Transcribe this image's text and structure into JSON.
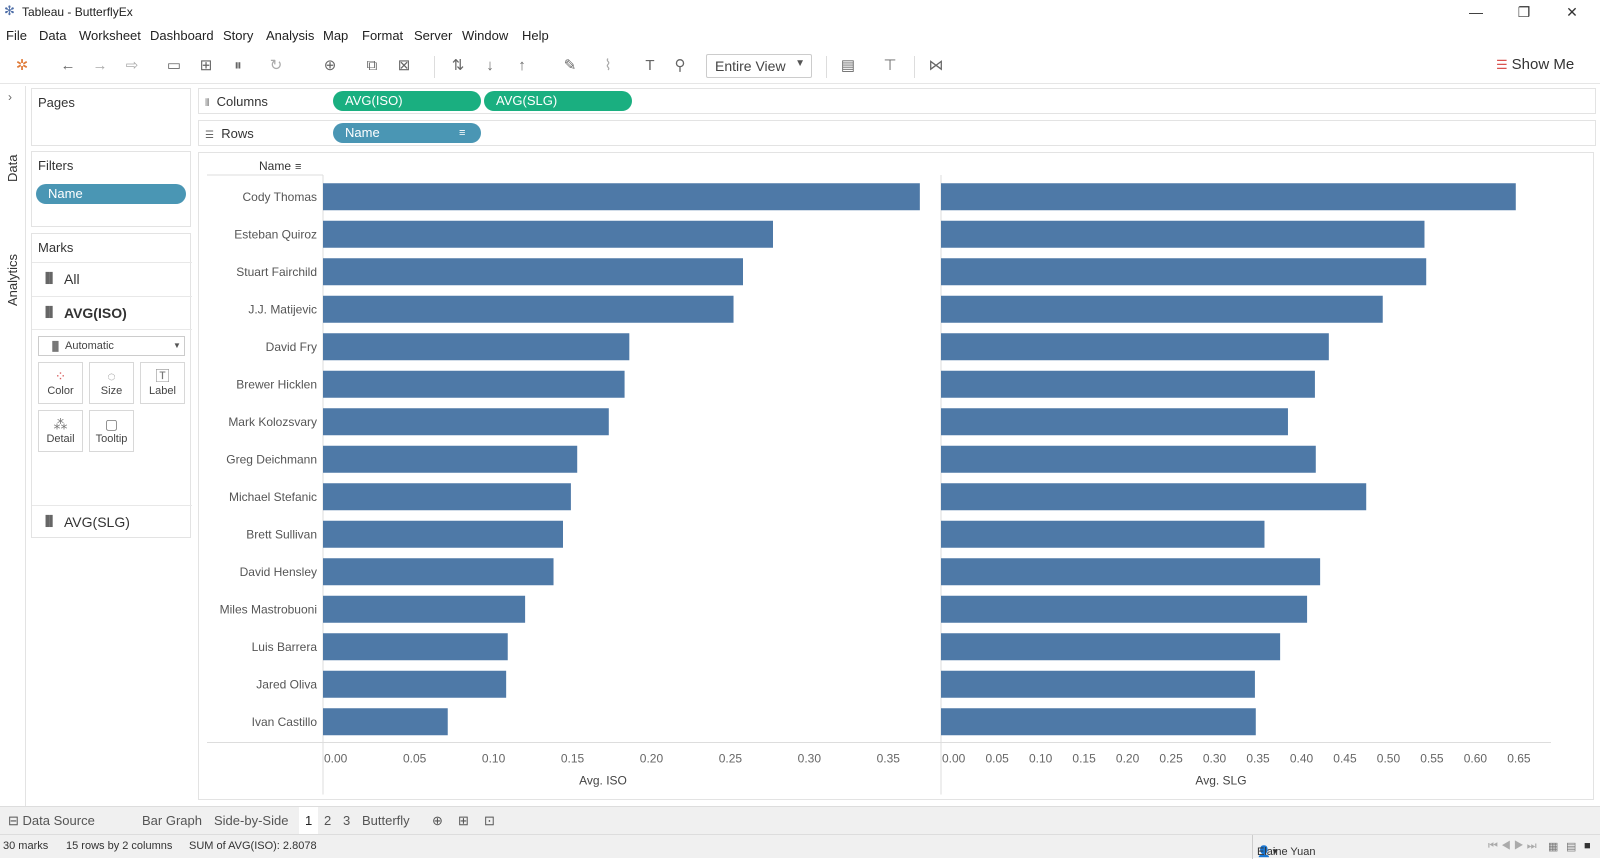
{
  "window": {
    "title": "Tableau - ButterflyEx",
    "controls": [
      "—",
      "❐",
      "✕"
    ]
  },
  "menu": [
    "File",
    "Data",
    "Worksheet",
    "Dashboard",
    "Story",
    "Analysis",
    "Map",
    "Format",
    "Server",
    "Window",
    "Help"
  ],
  "toolbar": {
    "view_select": "Entire View",
    "show_me": "Show Me"
  },
  "side_tabs": {
    "data": "Data",
    "analytics": "Analytics"
  },
  "cards": {
    "pages": "Pages",
    "filters": "Filters",
    "filter_pill": "Name",
    "marks": "Marks",
    "marks_all": "All",
    "marks_iso": "AVG(ISO)",
    "marks_type": "Automatic",
    "marks_slg": "AVG(SLG)",
    "buttons": {
      "color": "Color",
      "size": "Size",
      "label": "Label",
      "detail": "Detail",
      "tooltip": "Tooltip"
    }
  },
  "shelves": {
    "columns_label": "Columns",
    "rows_label": "Rows",
    "col_pill_1": "AVG(ISO)",
    "col_pill_2": "AVG(SLG)",
    "row_pill": "Name"
  },
  "chart_data": {
    "type": "bar",
    "orientation": "horizontal",
    "row_header": "Name",
    "categories": [
      "Cody Thomas",
      "Esteban Quiroz",
      "Stuart Fairchild",
      "J.J. Matijevic",
      "David Fry",
      "Brewer Hicklen",
      "Mark Kolozsvary",
      "Greg Deichmann",
      "Michael Stefanic",
      "Brett Sullivan",
      "David Hensley",
      "Miles Mastrobuoni",
      "Luis Barrera",
      "Jared Oliva",
      "Ivan Castillo"
    ],
    "series": [
      {
        "name": "Avg. ISO",
        "values": [
          0.378,
          0.285,
          0.266,
          0.26,
          0.194,
          0.191,
          0.181,
          0.161,
          0.157,
          0.152,
          0.146,
          0.128,
          0.117,
          0.116,
          0.079
        ],
        "xlim": [
          0,
          0.38
        ],
        "ticks": [
          "0.00",
          "0.05",
          "0.10",
          "0.15",
          "0.20",
          "0.25",
          "0.30",
          "0.35"
        ],
        "tick_values": [
          0,
          0.05,
          0.1,
          0.15,
          0.2,
          0.25,
          0.3,
          0.35
        ]
      },
      {
        "name": "Avg. SLG",
        "values": [
          0.661,
          0.556,
          0.558,
          0.508,
          0.446,
          0.43,
          0.399,
          0.431,
          0.489,
          0.372,
          0.436,
          0.421,
          0.39,
          0.361,
          0.362
        ],
        "xlim": [
          0,
          0.69
        ],
        "ticks": [
          "0.00",
          "0.05",
          "0.10",
          "0.15",
          "0.20",
          "0.25",
          "0.30",
          "0.35",
          "0.40",
          "0.45",
          "0.50",
          "0.55",
          "0.60",
          "0.65"
        ],
        "tick_values": [
          0,
          0.05,
          0.1,
          0.15,
          0.2,
          0.25,
          0.3,
          0.35,
          0.4,
          0.45,
          0.5,
          0.55,
          0.6,
          0.65
        ]
      }
    ],
    "bar_color": "#4e79a7"
  },
  "sheet_tabs": [
    "Data Source",
    "Bar Graph",
    "Side-by-Side",
    "1",
    "2",
    "3",
    "Butterfly"
  ],
  "status": {
    "marks": "30 marks",
    "rows": "15 rows by 2 columns",
    "sum": "SUM of AVG(ISO): 2.8078",
    "user": "Elaine Yuan"
  }
}
